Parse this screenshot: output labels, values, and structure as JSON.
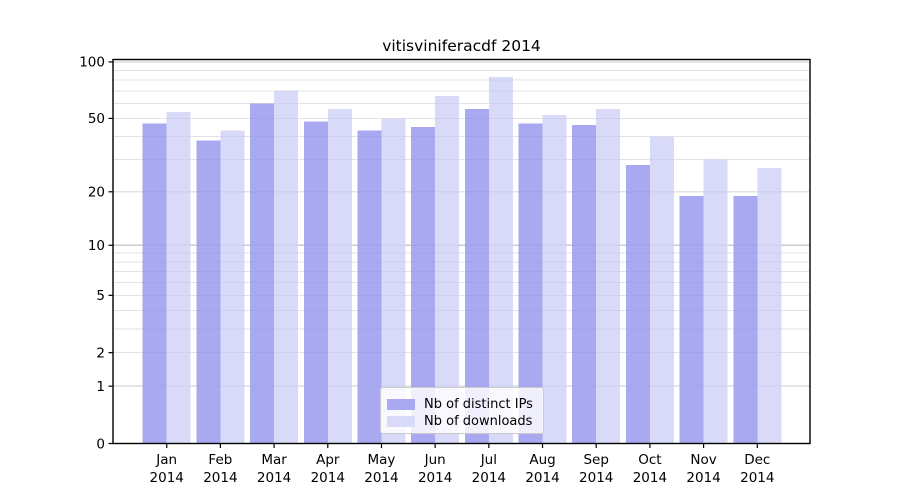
{
  "chart_data": {
    "type": "bar",
    "title": "vitisviniferacdf 2014",
    "yscale": "log1p",
    "ylim": [
      0,
      103
    ],
    "categories": [
      "Jan",
      "Feb",
      "Mar",
      "Apr",
      "May",
      "Jun",
      "Jul",
      "Aug",
      "Sep",
      "Oct",
      "Nov",
      "Dec"
    ],
    "x_tick_line2": "2014",
    "series": [
      {
        "name": "Nb of distinct IPs",
        "color": "#a9a9f2",
        "values": [
          47,
          38,
          60,
          48,
          43,
          45,
          56,
          47,
          46,
          28,
          19,
          19
        ]
      },
      {
        "name": "Nb of downloads",
        "color": "#d9d9f8",
        "values": [
          54,
          43,
          70,
          56,
          50,
          66,
          83,
          52,
          56,
          40,
          30,
          27
        ]
      }
    ],
    "y_tick_labels": [
      0,
      1,
      2,
      5,
      10,
      20,
      50,
      100
    ],
    "grid_values": [
      1,
      2,
      3,
      4,
      5,
      6,
      7,
      8,
      9,
      10,
      20,
      30,
      40,
      50,
      60,
      70,
      80,
      90,
      100
    ],
    "grid_major_values": [
      1,
      10,
      100
    ],
    "legend_position": "lower center",
    "colors": {
      "grid_minor": "#ececec",
      "grid_major": "#d3d3d3",
      "grid_overlay": "rgba(60,60,90,0.05)",
      "spine": "#000000",
      "text": "#000000",
      "legend_border": "#cbcbcb"
    }
  }
}
